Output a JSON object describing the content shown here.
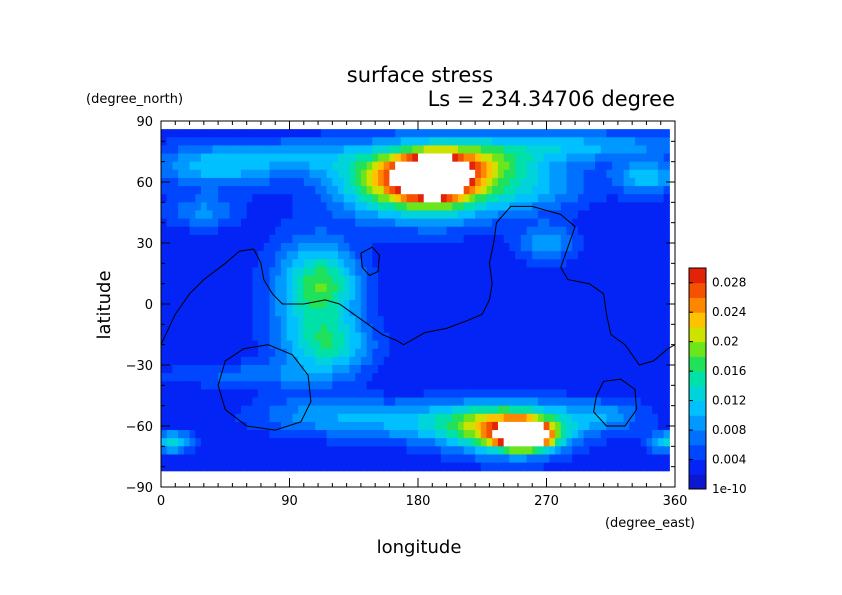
{
  "chart_data": {
    "type": "heatmap",
    "title": "surface stress",
    "subtitle": "Ls = 234.34706 degree",
    "xlabel": "longitude",
    "ylabel": "latitude",
    "x_unit": "(degree_east)",
    "y_unit": "(degree_north)",
    "xlim": [
      0,
      360
    ],
    "ylim": [
      -90,
      90
    ],
    "x_ticks": [
      "0",
      "90",
      "180",
      "270",
      "360"
    ],
    "y_ticks": [
      "90",
      "60",
      "30",
      "0",
      "−30",
      "−60",
      "−90"
    ],
    "colorbar": {
      "min": 0,
      "max": 0.03,
      "labels": [
        "0.028",
        "0.024",
        "0.02",
        "0.016",
        "0.012",
        "0.008",
        "0.004",
        "1e-10"
      ],
      "over_color": "#ffffff"
    },
    "background_level": 0.0025,
    "features": [
      {
        "lon": 190,
        "lat": 62,
        "rlon": 22,
        "rlat": 9,
        "value": 0.032
      },
      {
        "lon": 195,
        "lat": 58,
        "rlon": 45,
        "rlat": 17,
        "value": 0.018
      },
      {
        "lon": 215,
        "lat": 70,
        "rlon": 65,
        "rlat": 11,
        "value": 0.012
      },
      {
        "lon": 150,
        "lat": 60,
        "rlon": 35,
        "rlat": 16,
        "value": 0.01
      },
      {
        "lon": 300,
        "lat": 78,
        "rlon": 75,
        "rlat": 7,
        "value": 0.007
      },
      {
        "lon": 40,
        "lat": 68,
        "rlon": 45,
        "rlat": 11,
        "value": 0.009
      },
      {
        "lon": 100,
        "lat": 73,
        "rlon": 35,
        "rlat": 8,
        "value": 0.006
      },
      {
        "lon": 340,
        "lat": 62,
        "rlon": 22,
        "rlat": 8,
        "value": 0.009
      },
      {
        "lon": 260,
        "lat": 55,
        "rlon": 40,
        "rlat": 10,
        "value": 0.006
      },
      {
        "lon": 270,
        "lat": 30,
        "rlon": 20,
        "rlat": 10,
        "value": 0.007
      },
      {
        "lon": 30,
        "lat": 45,
        "rlon": 25,
        "rlat": 8,
        "value": 0.006
      },
      {
        "lon": 115,
        "lat": 10,
        "rlon": 25,
        "rlat": 18,
        "value": 0.011
      },
      {
        "lon": 120,
        "lat": -20,
        "rlon": 28,
        "rlat": 14,
        "value": 0.01
      },
      {
        "lon": 100,
        "lat": 0,
        "rlon": 30,
        "rlat": 35,
        "value": 0.006
      },
      {
        "lon": 255,
        "lat": -65,
        "rlon": 18,
        "rlat": 6,
        "value": 0.032
      },
      {
        "lon": 245,
        "lat": -62,
        "rlon": 40,
        "rlat": 12,
        "value": 0.018
      },
      {
        "lon": 200,
        "lat": -58,
        "rlon": 70,
        "rlat": 10,
        "value": 0.009
      },
      {
        "lon": 8,
        "lat": -68,
        "rlon": 14,
        "rlat": 5,
        "value": 0.011
      },
      {
        "lon": 355,
        "lat": -68,
        "rlon": 14,
        "rlat": 5,
        "value": 0.01
      },
      {
        "lon": 110,
        "lat": -55,
        "rlon": 50,
        "rlat": 9,
        "value": 0.005
      },
      {
        "lon": 310,
        "lat": -55,
        "rlon": 30,
        "rlat": 8,
        "value": 0.006
      },
      {
        "lon": 60,
        "lat": -35,
        "rlon": 60,
        "rlat": 6,
        "value": 0.004
      }
    ],
    "contours": [
      {
        "closed": false,
        "points": [
          [
            0,
            -20
          ],
          [
            10,
            -5
          ],
          [
            20,
            5
          ],
          [
            30,
            12
          ],
          [
            45,
            20
          ],
          [
            55,
            26
          ],
          [
            65,
            27
          ],
          [
            70,
            20
          ],
          [
            72,
            12
          ],
          [
            78,
            5
          ],
          [
            85,
            0
          ],
          [
            100,
            0
          ],
          [
            115,
            2
          ],
          [
            125,
            0
          ],
          [
            135,
            -5
          ],
          [
            145,
            -10
          ],
          [
            155,
            -15
          ],
          [
            165,
            -18
          ],
          [
            170,
            -20
          ],
          [
            175,
            -18
          ],
          [
            185,
            -14
          ],
          [
            200,
            -12
          ],
          [
            215,
            -8
          ],
          [
            225,
            -5
          ],
          [
            230,
            2
          ],
          [
            232,
            10
          ],
          [
            230,
            20
          ],
          [
            233,
            30
          ],
          [
            235,
            40
          ],
          [
            245,
            48
          ],
          [
            260,
            48
          ],
          [
            280,
            44
          ],
          [
            290,
            38
          ],
          [
            285,
            28
          ],
          [
            280,
            18
          ],
          [
            285,
            12
          ],
          [
            300,
            10
          ],
          [
            310,
            5
          ],
          [
            312,
            -5
          ],
          [
            315,
            -15
          ],
          [
            325,
            -20
          ],
          [
            330,
            -25
          ],
          [
            335,
            -30
          ],
          [
            345,
            -28
          ],
          [
            355,
            -22
          ],
          [
            360,
            -20
          ]
        ]
      },
      {
        "closed": true,
        "points": [
          [
            140,
            25
          ],
          [
            148,
            28
          ],
          [
            153,
            24
          ],
          [
            152,
            16
          ],
          [
            146,
            14
          ],
          [
            141,
            18
          ]
        ]
      },
      {
        "closed": true,
        "points": [
          [
            40,
            -40
          ],
          [
            45,
            -28
          ],
          [
            58,
            -22
          ],
          [
            75,
            -20
          ],
          [
            92,
            -25
          ],
          [
            103,
            -35
          ],
          [
            105,
            -48
          ],
          [
            98,
            -58
          ],
          [
            80,
            -62
          ],
          [
            60,
            -60
          ],
          [
            45,
            -52
          ]
        ]
      },
      {
        "closed": true,
        "points": [
          [
            305,
            -45
          ],
          [
            310,
            -38
          ],
          [
            322,
            -37
          ],
          [
            332,
            -42
          ],
          [
            333,
            -52
          ],
          [
            325,
            -60
          ],
          [
            312,
            -60
          ],
          [
            303,
            -53
          ]
        ]
      }
    ]
  }
}
